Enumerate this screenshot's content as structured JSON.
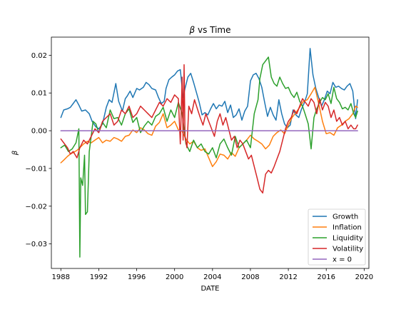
{
  "chart_data": {
    "type": "line",
    "title_prefix": "β",
    "title_suffix": " vs Time",
    "xlabel": "DATE",
    "ylabel": "β",
    "xlim": [
      1987,
      2020.5
    ],
    "ylim": [
      -0.0365,
      0.0248
    ],
    "x_ticks": [
      1988,
      1992,
      1996,
      2000,
      2004,
      2008,
      2012,
      2016,
      2020
    ],
    "x_tick_labels": [
      "1988",
      "1992",
      "1996",
      "2000",
      "2004",
      "2008",
      "2012",
      "2016",
      "2020"
    ],
    "y_ticks": [
      -0.03,
      -0.02,
      -0.01,
      0.0,
      0.01,
      0.02
    ],
    "y_tick_labels": [
      "−0.03",
      "−0.02",
      "−0.01",
      "0.00",
      "0.01",
      "0.02"
    ],
    "grid": false,
    "legend_position": "lower-right",
    "series": [
      {
        "name": "Growth",
        "color": "#1f77b4",
        "x": [
          1988.0,
          1988.3,
          1988.7,
          1989.0,
          1989.3,
          1989.6,
          1989.9,
          1990.2,
          1990.6,
          1991.0,
          1991.3,
          1991.7,
          1992.0,
          1992.4,
          1992.8,
          1993.1,
          1993.4,
          1993.8,
          1994.1,
          1994.5,
          1994.8,
          1995.0,
          1995.3,
          1995.6,
          1996.0,
          1996.3,
          1996.7,
          1997.0,
          1997.3,
          1997.6,
          1998.0,
          1998.3,
          1998.6,
          1998.9,
          1999.1,
          1999.4,
          1999.7,
          2000.0,
          2000.3,
          2000.6,
          2000.9,
          2001.1,
          2001.4,
          2001.7,
          2002.0,
          2002.3,
          2002.6,
          2002.9,
          2003.2,
          2003.5,
          2003.8,
          2004.1,
          2004.4,
          2004.7,
          2005.0,
          2005.3,
          2005.6,
          2005.9,
          2006.2,
          2006.5,
          2006.8,
          2007.1,
          2007.4,
          2007.7,
          2008.0,
          2008.3,
          2008.6,
          2008.9,
          2009.2,
          2009.5,
          2009.8,
          2010.1,
          2010.4,
          2010.7,
          2011.0,
          2011.3,
          2011.6,
          2011.9,
          2012.2,
          2012.5,
          2012.8,
          2013.1,
          2013.4,
          2013.7,
          2014.0,
          2014.3,
          2014.6,
          2014.9,
          2015.2,
          2015.5,
          2015.8,
          2016.1,
          2016.4,
          2016.7,
          2017.0,
          2017.3,
          2017.6,
          2017.9,
          2018.2,
          2018.5,
          2018.8,
          2019.1,
          2019.3
        ],
        "y": [
          0.0035,
          0.0055,
          0.0058,
          0.0062,
          0.0072,
          0.0082,
          0.0068,
          0.0052,
          0.0055,
          0.0045,
          0.0025,
          0.001,
          0.0005,
          0.0018,
          0.0062,
          0.0082,
          0.0075,
          0.0125,
          0.0078,
          0.0052,
          0.0085,
          0.0092,
          0.0105,
          0.0088,
          0.0112,
          0.0108,
          0.0115,
          0.0128,
          0.0122,
          0.0112,
          0.0108,
          0.0088,
          0.0072,
          0.0078,
          0.0112,
          0.0135,
          0.0142,
          0.0148,
          0.0158,
          0.0162,
          0.0088,
          0.0112,
          0.0142,
          0.0152,
          0.0128,
          0.0102,
          0.0075,
          0.0042,
          0.0048,
          0.0042,
          0.0058,
          0.0072,
          0.0058,
          0.0068,
          0.0065,
          0.0078,
          0.0048,
          0.0068,
          0.0035,
          0.0042,
          0.0058,
          0.0028,
          0.0052,
          0.0065,
          0.0132,
          0.0148,
          0.0152,
          0.0138,
          0.0115,
          0.0075,
          0.0038,
          0.0062,
          0.0042,
          0.0028,
          0.0082,
          0.0045,
          0.0018,
          0.0008,
          0.0015,
          0.0055,
          0.0042,
          0.0035,
          0.0058,
          0.0075,
          0.0098,
          0.0218,
          0.0148,
          0.0112,
          0.0088,
          0.0065,
          0.0082,
          0.0105,
          0.0098,
          0.0128,
          0.0115,
          0.0118,
          0.0112,
          0.0108,
          0.0118,
          0.0125,
          0.0105,
          0.0032,
          0.0082
        ]
      },
      {
        "name": "Inflation",
        "color": "#ff7f0e",
        "x": [
          1988.0,
          1988.3,
          1988.7,
          1989.0,
          1989.3,
          1989.7,
          1990.0,
          1990.4,
          1990.8,
          1991.2,
          1991.6,
          1992.0,
          1992.4,
          1992.8,
          1993.2,
          1993.6,
          1994.0,
          1994.4,
          1994.8,
          1995.2,
          1995.6,
          1996.0,
          1996.4,
          1996.8,
          1997.2,
          1997.6,
          1998.0,
          1998.4,
          1998.8,
          1999.2,
          1999.6,
          2000.0,
          2000.4,
          2000.8,
          2001.2,
          2001.6,
          2002.0,
          2002.4,
          2002.8,
          2003.2,
          2003.6,
          2004.0,
          2004.4,
          2004.8,
          2005.2,
          2005.6,
          2006.0,
          2006.4,
          2006.8,
          2007.2,
          2007.6,
          2008.0,
          2008.4,
          2008.8,
          2009.2,
          2009.6,
          2010.0,
          2010.4,
          2010.8,
          2011.2,
          2011.6,
          2012.0,
          2012.4,
          2012.8,
          2013.2,
          2013.6,
          2014.0,
          2014.4,
          2014.8,
          2015.2,
          2015.6,
          2016.0,
          2016.4,
          2016.8,
          2017.2,
          2017.6,
          2018.0,
          2018.4,
          2018.8,
          2019.1,
          2019.3
        ],
        "y": [
          -0.0085,
          -0.0078,
          -0.0068,
          -0.0062,
          -0.0058,
          -0.0052,
          -0.0045,
          -0.0035,
          -0.0028,
          -0.0032,
          -0.0025,
          -0.0018,
          -0.0032,
          -0.0025,
          -0.0028,
          -0.0018,
          -0.0022,
          -0.0028,
          -0.0015,
          -0.0012,
          0.0002,
          -0.0005,
          0.0008,
          0.0002,
          -0.0008,
          -0.0012,
          0.0012,
          0.0022,
          0.0045,
          0.0008,
          0.0015,
          0.0025,
          0.0002,
          -0.0002,
          -0.0022,
          -0.0035,
          -0.0028,
          -0.0045,
          -0.0052,
          -0.0048,
          -0.0072,
          -0.0095,
          -0.0082,
          -0.0062,
          -0.0065,
          -0.0075,
          -0.0058,
          -0.0068,
          -0.0045,
          -0.0035,
          -0.0025,
          -0.0012,
          -0.0022,
          -0.0028,
          -0.0035,
          -0.0048,
          -0.0038,
          -0.0015,
          -0.0005,
          0.0002,
          -0.0008,
          0.0015,
          0.0035,
          0.0048,
          0.0062,
          0.0078,
          0.0082,
          0.0098,
          0.0115,
          0.0072,
          0.0025,
          -0.0008,
          -0.0005,
          -0.0012,
          0.0008,
          0.0015,
          0.0025,
          0.0032,
          0.0045,
          0.0065,
          0.0062
        ]
      },
      {
        "name": "Liquidity",
        "color": "#2ca02c",
        "x": [
          1988.0,
          1988.4,
          1988.8,
          1989.2,
          1989.6,
          1989.9,
          1990.0,
          1990.1,
          1990.3,
          1990.5,
          1990.6,
          1990.8,
          1991.0,
          1991.2,
          1991.4,
          1991.7,
          1992.0,
          1992.4,
          1992.8,
          1993.2,
          1993.6,
          1994.0,
          1994.4,
          1994.8,
          1995.2,
          1995.6,
          1996.0,
          1996.4,
          1996.8,
          1997.2,
          1997.6,
          1998.0,
          1998.4,
          1998.8,
          1999.2,
          1999.6,
          2000.0,
          2000.4,
          2000.8,
          2001.2,
          2001.6,
          2002.0,
          2002.4,
          2002.8,
          2003.2,
          2003.6,
          2004.0,
          2004.4,
          2004.8,
          2005.2,
          2005.6,
          2006.0,
          2006.4,
          2006.8,
          2007.2,
          2007.6,
          2008.0,
          2008.4,
          2008.8,
          2009.0,
          2009.3,
          2009.6,
          2009.9,
          2010.2,
          2010.5,
          2010.8,
          2011.1,
          2011.4,
          2011.7,
          2012.0,
          2012.3,
          2012.6,
          2012.9,
          2013.2,
          2013.5,
          2013.8,
          2014.1,
          2014.4,
          2014.7,
          2015.0,
          2015.3,
          2015.6,
          2015.9,
          2016.2,
          2016.5,
          2016.8,
          2017.1,
          2017.4,
          2017.7,
          2018.0,
          2018.3,
          2018.6,
          2018.9,
          2019.1,
          2019.3
        ],
        "y": [
          -0.0045,
          -0.0038,
          -0.0055,
          -0.0048,
          -0.0032,
          0.0005,
          -0.0335,
          -0.0125,
          -0.0145,
          -0.0065,
          -0.0222,
          -0.0215,
          -0.0055,
          -0.0015,
          0.0025,
          0.0018,
          -0.0005,
          0.0022,
          0.0008,
          0.0055,
          0.0032,
          0.0035,
          0.0015,
          0.0045,
          0.0058,
          0.0022,
          0.0035,
          -0.0005,
          0.0012,
          0.0025,
          0.0015,
          0.0038,
          0.0045,
          0.0062,
          0.0025,
          0.0055,
          0.0035,
          0.0075,
          0.0045,
          -0.0035,
          -0.0055,
          -0.0025,
          -0.0045,
          -0.0035,
          -0.0055,
          -0.0062,
          -0.0045,
          -0.0072,
          -0.0035,
          -0.0022,
          -0.0045,
          -0.0065,
          -0.0015,
          -0.0045,
          -0.0035,
          -0.0025,
          -0.0045,
          0.0045,
          0.0082,
          0.0138,
          0.0175,
          0.0185,
          0.0195,
          0.0142,
          0.0125,
          0.0118,
          0.0142,
          0.0125,
          0.0112,
          0.0115,
          0.0098,
          0.0088,
          0.0102,
          0.0078,
          0.0065,
          0.0042,
          0.0018,
          -0.0048,
          0.0035,
          0.0058,
          0.0075,
          0.0088,
          0.0082,
          0.0098,
          0.0072,
          0.0115,
          0.0085,
          0.0075,
          0.0058,
          0.0062,
          0.0055,
          0.0072,
          0.0045,
          0.0035,
          0.0052
        ]
      },
      {
        "name": "Volatility",
        "color": "#d62728",
        "x": [
          1988.0,
          1988.3,
          1988.7,
          1989.0,
          1989.3,
          1989.7,
          1990.0,
          1990.4,
          1990.8,
          1991.2,
          1991.6,
          1992.0,
          1992.4,
          1992.8,
          1993.2,
          1993.6,
          1994.0,
          1994.4,
          1994.8,
          1995.2,
          1995.6,
          1996.0,
          1996.4,
          1996.8,
          1997.2,
          1997.6,
          1998.0,
          1998.4,
          1998.8,
          1999.2,
          1999.6,
          2000.0,
          2000.4,
          2000.6,
          2000.8,
          2000.9,
          2001.0,
          2001.1,
          2001.3,
          2001.5,
          2001.8,
          2002.1,
          2002.4,
          2002.7,
          2003.0,
          2003.3,
          2003.6,
          2003.9,
          2004.2,
          2004.5,
          2004.8,
          2005.1,
          2005.4,
          2005.7,
          2006.0,
          2006.3,
          2006.6,
          2006.9,
          2007.2,
          2007.5,
          2007.8,
          2008.1,
          2008.4,
          2008.7,
          2009.0,
          2009.3,
          2009.6,
          2009.9,
          2010.2,
          2010.5,
          2010.8,
          2011.1,
          2011.4,
          2011.7,
          2012.0,
          2012.3,
          2012.6,
          2012.9,
          2013.2,
          2013.5,
          2013.8,
          2014.1,
          2014.4,
          2014.7,
          2015.0,
          2015.3,
          2015.6,
          2015.9,
          2016.2,
          2016.5,
          2016.8,
          2017.1,
          2017.4,
          2017.7,
          2018.0,
          2018.3,
          2018.6,
          2018.9,
          2019.1,
          2019.3
        ],
        "y": [
          -0.0022,
          -0.0032,
          -0.0045,
          -0.0062,
          -0.0055,
          -0.0072,
          -0.0045,
          -0.0025,
          -0.0035,
          -0.0015,
          0.0005,
          -0.0005,
          0.0025,
          0.0035,
          0.0045,
          0.0015,
          0.0025,
          0.0055,
          0.0045,
          0.0065,
          0.0035,
          0.0045,
          0.0065,
          0.0055,
          0.0045,
          0.0035,
          0.0055,
          0.0075,
          0.0065,
          0.0085,
          0.0075,
          0.0095,
          0.0085,
          -0.0035,
          0.0142,
          -0.0025,
          0.0175,
          -0.0015,
          -0.0045,
          0.0065,
          0.0045,
          0.0082,
          0.0058,
          0.0035,
          0.0015,
          0.0045,
          0.0025,
          0.0005,
          -0.0015,
          0.0025,
          0.0045,
          0.0015,
          0.0035,
          0.0005,
          -0.0025,
          -0.0015,
          -0.0045,
          -0.0025,
          -0.0035,
          -0.0055,
          -0.0075,
          -0.0065,
          -0.0095,
          -0.0125,
          -0.0155,
          -0.0165,
          -0.0115,
          -0.0105,
          -0.0112,
          -0.0095,
          -0.0075,
          -0.0055,
          -0.0025,
          0.0005,
          0.0025,
          0.0035,
          0.0055,
          0.0045,
          0.0065,
          0.0085,
          0.0075,
          0.0065,
          0.0085,
          0.0075,
          0.0045,
          0.0085,
          0.0055,
          0.0075,
          0.0065,
          0.0035,
          0.0055,
          0.0025,
          0.0035,
          0.0015,
          0.0025,
          0.0005,
          0.0015,
          0.0005,
          0.0005,
          0.0015
        ]
      },
      {
        "name": "x = 0",
        "color": "#9467bd",
        "x": [
          1988.0,
          2019.3
        ],
        "y": [
          0.0,
          0.0
        ]
      }
    ]
  }
}
